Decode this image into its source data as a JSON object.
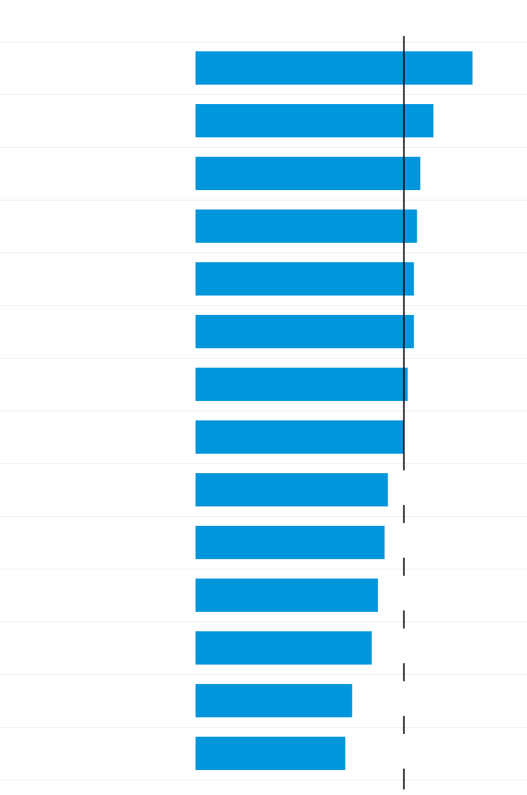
{
  "chart_data": {
    "type": "bar",
    "orientation": "horizontal",
    "title": "",
    "xlabel": "",
    "ylabel": "",
    "categories": [
      "",
      "",
      "",
      "",
      "",
      "",
      "",
      "",
      "",
      "",
      "",
      "",
      "",
      ""
    ],
    "values": [
      1.332,
      1.144,
      1.081,
      1.065,
      1.05,
      1.05,
      1.02,
      1.0,
      0.925,
      0.909,
      0.877,
      0.847,
      0.753,
      0.72
    ],
    "reference_line": 1.0,
    "xlim": [
      0,
      1.594
    ],
    "grid": true,
    "legend": "none",
    "bar_color": "#0096dc",
    "reference_line_color": "#000000",
    "gridline_color": "#ebebeb"
  }
}
